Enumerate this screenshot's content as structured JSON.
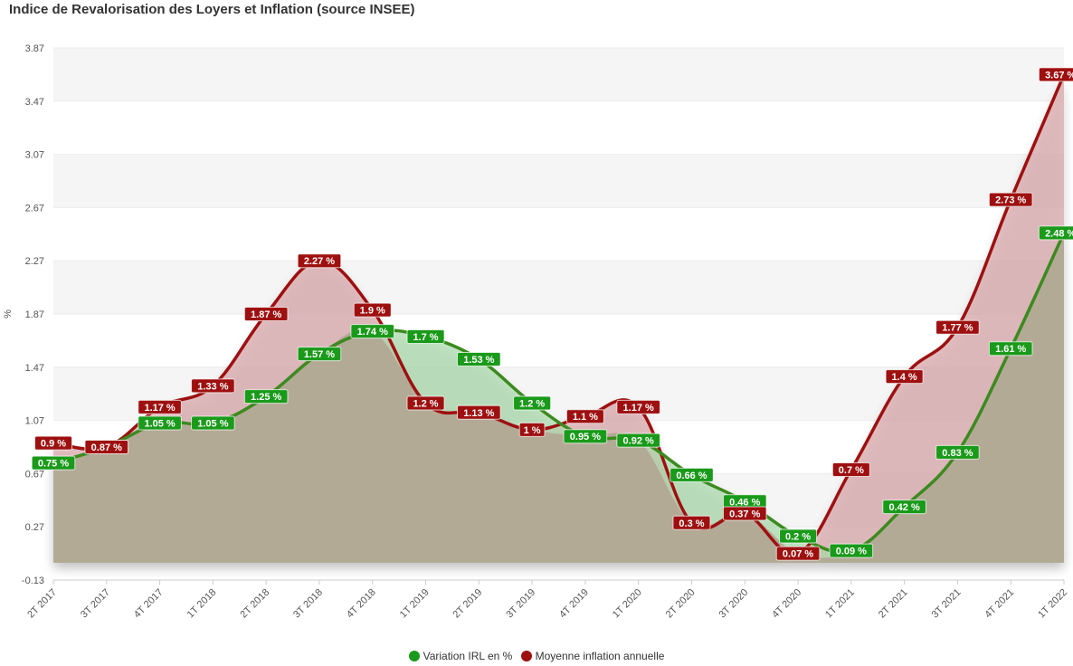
{
  "title": "Indice de Revalorisation des Loyers et Inflation (source INSEE)",
  "colors": {
    "irl": "#1a9a1a",
    "irl_line": "#3c8a1f",
    "inflation": "#9e1010",
    "band": "#f5f5f5",
    "area_overlap": "#b2a895",
    "area_inflation": "#d9a9ac",
    "area_irl": "#a8d8aa"
  },
  "legend": {
    "items": [
      {
        "label": "Variation IRL en %",
        "color": "#1a9a1a"
      },
      {
        "label": "Moyenne inflation annuelle",
        "color": "#9e1010"
      }
    ]
  },
  "chart_data": {
    "type": "area",
    "title": "Indice de Revalorisation des Loyers et Inflation (source INSEE)",
    "xlabel": "",
    "ylabel": "%",
    "ylim": [
      -0.13,
      3.87
    ],
    "yticks": [
      -0.13,
      0.27,
      0.67,
      1.07,
      1.47,
      1.87,
      2.27,
      2.67,
      3.07,
      3.47,
      3.87
    ],
    "grid": true,
    "legend_position": "bottom",
    "categories": [
      "2T 2017",
      "3T 2017",
      "4T 2017",
      "1T 2018",
      "2T 2018",
      "3T 2018",
      "4T 2018",
      "1T 2019",
      "2T 2019",
      "3T 2019",
      "4T 2019",
      "1T 2020",
      "2T 2020",
      "3T 2020",
      "4T 2020",
      "1T 2021",
      "2T 2021",
      "3T 2021",
      "4T 2021",
      "1T 2022"
    ],
    "series": [
      {
        "name": "Variation IRL en %",
        "values": [
          0.75,
          0.87,
          1.05,
          1.05,
          1.25,
          1.57,
          1.74,
          1.7,
          1.53,
          1.2,
          0.95,
          0.92,
          0.66,
          0.46,
          0.2,
          0.09,
          0.42,
          0.83,
          1.61,
          2.48
        ]
      },
      {
        "name": "Moyenne inflation annuelle",
        "values": [
          0.9,
          0.87,
          1.17,
          1.33,
          1.87,
          2.27,
          1.9,
          1.2,
          1.13,
          1,
          1.1,
          1.17,
          0.3,
          0.37,
          0.07,
          0.7,
          1.4,
          1.77,
          2.73,
          3.67
        ]
      }
    ],
    "data_label_suffix": " %"
  }
}
